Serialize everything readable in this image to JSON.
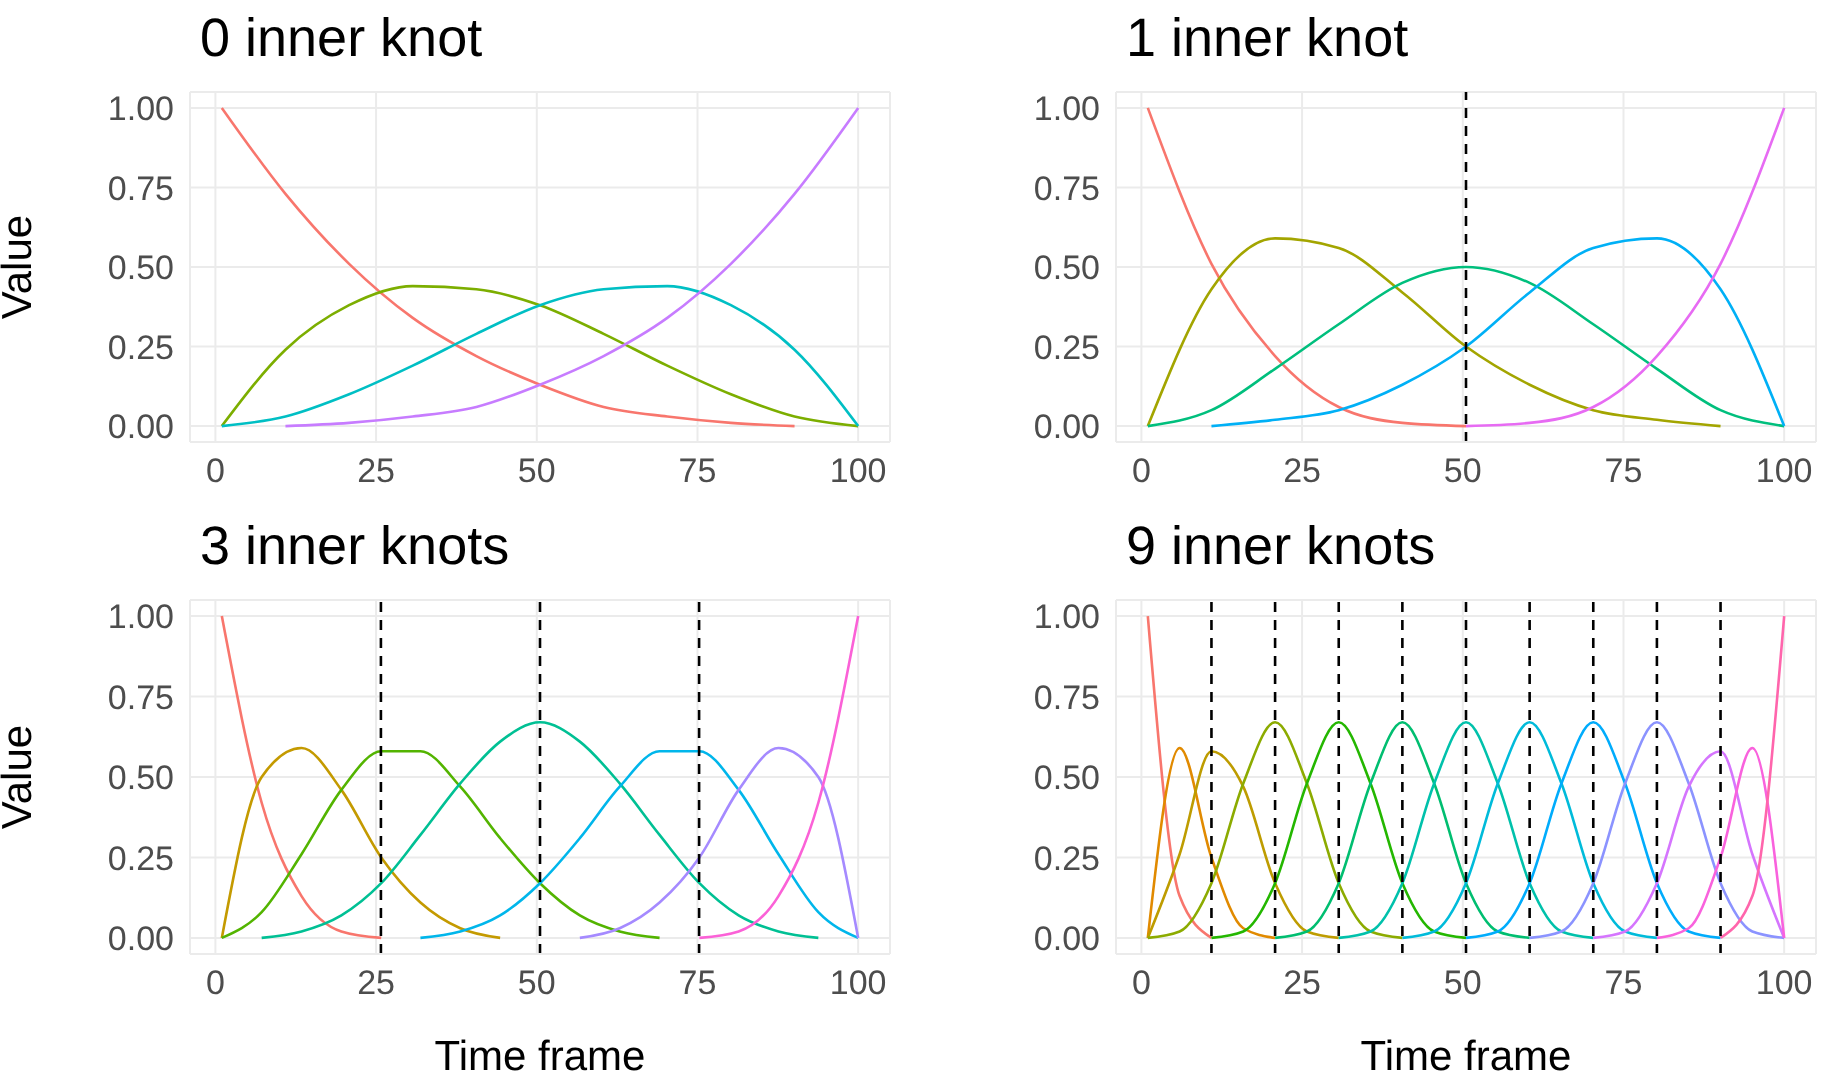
{
  "chart_data": [
    {
      "type": "line",
      "title": "0 inner knot",
      "ylabel": "Value",
      "x": [
        1,
        10.9,
        20.8,
        30.7,
        40.6,
        50.5,
        60.4,
        70.3,
        80.2,
        90.1,
        100
      ],
      "xlim": [
        -3.95,
        104.95
      ],
      "xticks": [
        0,
        25,
        50,
        75,
        100
      ],
      "ylim": [
        -0.05,
        1.05
      ],
      "yticks": [
        {
          "value": 0,
          "label": "0.00"
        },
        {
          "value": 0.25,
          "label": "0.25"
        },
        {
          "value": 0.5,
          "label": "0.50"
        },
        {
          "value": 0.75,
          "label": "0.75"
        },
        {
          "value": 1,
          "label": "1.00"
        }
      ],
      "grid": true,
      "series": [
        {
          "color": "#f8766d",
          "values": [
            1,
            0.73,
            0.51,
            0.34,
            0.22,
            0.13,
            0.06,
            0.03,
            0.01,
            0,
            null
          ]
        },
        {
          "color": "#7cae00",
          "values": [
            0,
            0.24,
            0.38,
            0.44,
            0.43,
            0.38,
            0.29,
            0.19,
            0.1,
            0.03,
            0
          ]
        },
        {
          "color": "#00bfc4",
          "values": [
            0,
            0.03,
            0.1,
            0.19,
            0.29,
            0.38,
            0.43,
            0.44,
            0.38,
            0.24,
            0
          ]
        },
        {
          "color": "#c77cff",
          "values": [
            null,
            0,
            0.01,
            0.03,
            0.06,
            0.13,
            0.22,
            0.34,
            0.51,
            0.73,
            1
          ]
        }
      ]
    },
    {
      "type": "line",
      "title": "1 inner knot",
      "x": [
        1,
        10.9,
        20.8,
        30.7,
        40.6,
        50.5,
        60.4,
        70.3,
        80.2,
        90.1,
        100
      ],
      "xlim": [
        -3.95,
        104.95
      ],
      "xticks": [
        0,
        25,
        50,
        75,
        100
      ],
      "ylim": [
        -0.05,
        1.05
      ],
      "yticks": [
        {
          "value": 0,
          "label": "0.00"
        },
        {
          "value": 0.25,
          "label": "0.25"
        },
        {
          "value": 0.5,
          "label": "0.50"
        },
        {
          "value": 0.75,
          "label": "0.75"
        },
        {
          "value": 1,
          "label": "1.00"
        }
      ],
      "grid": true,
      "ref_lines": [
        {
          "axis": "x",
          "value": 50.5,
          "color": "#000000",
          "line_style": "dashed"
        }
      ],
      "series": [
        {
          "color": "#f8766d",
          "values": [
            1,
            0.51,
            0.22,
            0.06,
            0.01,
            0,
            null,
            null,
            null,
            null,
            null
          ]
        },
        {
          "color": "#a3a500",
          "values": [
            0,
            0.43,
            0.59,
            0.56,
            0.42,
            0.25,
            0.13,
            0.05,
            0.02,
            0,
            null
          ]
        },
        {
          "color": "#00bf7d",
          "values": [
            0,
            0.05,
            0.18,
            0.32,
            0.45,
            0.5,
            0.45,
            0.32,
            0.18,
            0.05,
            0
          ]
        },
        {
          "color": "#00b0f6",
          "values": [
            null,
            0,
            0.02,
            0.05,
            0.13,
            0.25,
            0.42,
            0.56,
            0.59,
            0.43,
            0
          ]
        },
        {
          "color": "#e76bf3",
          "values": [
            null,
            null,
            null,
            null,
            null,
            0,
            0.01,
            0.06,
            0.22,
            0.51,
            1
          ]
        }
      ]
    },
    {
      "type": "line",
      "title": "3 inner knots",
      "ylabel": "Value",
      "xlabel": "Time frame",
      "x": [
        1,
        7.2,
        13.4,
        19.6,
        25.8,
        31.9,
        38.1,
        44.3,
        50.5,
        56.7,
        62.9,
        69.1,
        75.3,
        81.4,
        87.6,
        93.8,
        100
      ],
      "xlim": [
        -3.95,
        104.95
      ],
      "xticks": [
        0,
        25,
        50,
        75,
        100
      ],
      "ylim": [
        -0.05,
        1.05
      ],
      "yticks": [
        {
          "value": 0,
          "label": "0.00"
        },
        {
          "value": 0.25,
          "label": "0.25"
        },
        {
          "value": 0.5,
          "label": "0.50"
        },
        {
          "value": 0.75,
          "label": "0.75"
        },
        {
          "value": 1,
          "label": "1.00"
        }
      ],
      "grid": true,
      "ref_lines": [
        {
          "axis": "x",
          "value": 25.75,
          "color": "#000000",
          "line_style": "dashed"
        },
        {
          "axis": "x",
          "value": 50.5,
          "color": "#000000",
          "line_style": "dashed"
        },
        {
          "axis": "x",
          "value": 75.25,
          "color": "#000000",
          "line_style": "dashed"
        }
      ],
      "series": [
        {
          "color": "#f8766d",
          "values": [
            1,
            0.42,
            0.13,
            0.02,
            0,
            null,
            null,
            null,
            null,
            null,
            null,
            null,
            null,
            null,
            null,
            null,
            null
          ]
        },
        {
          "color": "#c49a00",
          "values": [
            0,
            0.5,
            0.59,
            0.46,
            0.25,
            0.11,
            0.03,
            0,
            null,
            null,
            null,
            null,
            null,
            null,
            null,
            null,
            null
          ]
        },
        {
          "color": "#53b400",
          "values": [
            0,
            0.08,
            0.26,
            0.46,
            0.58,
            0.58,
            0.47,
            0.31,
            0.17,
            0.07,
            0.02,
            0,
            null,
            null,
            null,
            null,
            null
          ]
        },
        {
          "color": "#00c094",
          "values": [
            null,
            0,
            0.02,
            0.07,
            0.17,
            0.32,
            0.48,
            0.61,
            0.67,
            0.61,
            0.48,
            0.32,
            0.17,
            0.07,
            0.02,
            0,
            null
          ]
        },
        {
          "color": "#00b6eb",
          "values": [
            null,
            null,
            null,
            null,
            null,
            0,
            0.02,
            0.07,
            0.17,
            0.31,
            0.47,
            0.58,
            0.58,
            0.46,
            0.26,
            0.08,
            0
          ]
        },
        {
          "color": "#a58aff",
          "values": [
            null,
            null,
            null,
            null,
            null,
            null,
            null,
            null,
            null,
            0,
            0.03,
            0.11,
            0.25,
            0.46,
            0.59,
            0.5,
            0
          ]
        },
        {
          "color": "#fb61d7",
          "values": [
            null,
            null,
            null,
            null,
            null,
            null,
            null,
            null,
            null,
            null,
            null,
            null,
            0,
            0.02,
            0.13,
            0.42,
            1
          ]
        }
      ]
    },
    {
      "type": "line",
      "title": "9 inner knots",
      "xlabel": "Time frame",
      "x": [
        1,
        5.95,
        10.9,
        15.85,
        20.8,
        25.75,
        30.7,
        35.65,
        40.6,
        45.55,
        50.5,
        55.45,
        60.4,
        65.35,
        70.3,
        75.25,
        80.2,
        85.15,
        90.1,
        95.05,
        100
      ],
      "xlim": [
        -3.95,
        104.95
      ],
      "xticks": [
        0,
        25,
        50,
        75,
        100
      ],
      "ylim": [
        -0.05,
        1.05
      ],
      "yticks": [
        {
          "value": 0,
          "label": "0.00"
        },
        {
          "value": 0.25,
          "label": "0.25"
        },
        {
          "value": 0.5,
          "label": "0.50"
        },
        {
          "value": 0.75,
          "label": "0.75"
        },
        {
          "value": 1,
          "label": "1.00"
        }
      ],
      "grid": true,
      "ref_lines": [
        {
          "axis": "x",
          "value": 10.9,
          "color": "#000000",
          "line_style": "dashed"
        },
        {
          "axis": "x",
          "value": 20.8,
          "color": "#000000",
          "line_style": "dashed"
        },
        {
          "axis": "x",
          "value": 30.7,
          "color": "#000000",
          "line_style": "dashed"
        },
        {
          "axis": "x",
          "value": 40.6,
          "color": "#000000",
          "line_style": "dashed"
        },
        {
          "axis": "x",
          "value": 50.5,
          "color": "#000000",
          "line_style": "dashed"
        },
        {
          "axis": "x",
          "value": 60.4,
          "color": "#000000",
          "line_style": "dashed"
        },
        {
          "axis": "x",
          "value": 70.3,
          "color": "#000000",
          "line_style": "dashed"
        },
        {
          "axis": "x",
          "value": 80.2,
          "color": "#000000",
          "line_style": "dashed"
        },
        {
          "axis": "x",
          "value": 90.1,
          "color": "#000000",
          "line_style": "dashed"
        }
      ],
      "series": [
        {
          "color": "#f8766d",
          "values": [
            1,
            0.13,
            0,
            null,
            null,
            null,
            null,
            null,
            null,
            null,
            null,
            null,
            null,
            null,
            null,
            null,
            null,
            null,
            null,
            null,
            null
          ]
        },
        {
          "color": "#e18a00",
          "values": [
            0,
            0.59,
            0.25,
            0.03,
            0,
            null,
            null,
            null,
            null,
            null,
            null,
            null,
            null,
            null,
            null,
            null,
            null,
            null,
            null,
            null,
            null
          ]
        },
        {
          "color": "#be9c00",
          "values": [
            0,
            0.26,
            0.58,
            0.47,
            0.17,
            0.02,
            0,
            null,
            null,
            null,
            null,
            null,
            null,
            null,
            null,
            null,
            null,
            null,
            null,
            null,
            null
          ]
        },
        {
          "color": "#8cab00",
          "values": [
            0,
            0.02,
            0.17,
            0.48,
            0.67,
            0.48,
            0.17,
            0.02,
            0,
            null,
            null,
            null,
            null,
            null,
            null,
            null,
            null,
            null,
            null,
            null,
            null
          ]
        },
        {
          "color": "#24b700",
          "values": [
            null,
            null,
            0,
            0.02,
            0.17,
            0.48,
            0.67,
            0.48,
            0.17,
            0.02,
            0,
            null,
            null,
            null,
            null,
            null,
            null,
            null,
            null,
            null,
            null
          ]
        },
        {
          "color": "#00be70",
          "values": [
            null,
            null,
            null,
            null,
            0,
            0.02,
            0.17,
            0.48,
            0.67,
            0.48,
            0.17,
            0.02,
            0,
            null,
            null,
            null,
            null,
            null,
            null,
            null,
            null
          ]
        },
        {
          "color": "#00c1ab",
          "values": [
            null,
            null,
            null,
            null,
            null,
            null,
            0,
            0.02,
            0.17,
            0.48,
            0.67,
            0.48,
            0.17,
            0.02,
            0,
            null,
            null,
            null,
            null,
            null,
            null
          ]
        },
        {
          "color": "#00bbda",
          "values": [
            null,
            null,
            null,
            null,
            null,
            null,
            null,
            null,
            0,
            0.02,
            0.17,
            0.48,
            0.67,
            0.48,
            0.17,
            0.02,
            0,
            null,
            null,
            null,
            null
          ]
        },
        {
          "color": "#00acfc",
          "values": [
            null,
            null,
            null,
            null,
            null,
            null,
            null,
            null,
            null,
            null,
            0,
            0.02,
            0.17,
            0.48,
            0.67,
            0.48,
            0.17,
            0.02,
            0,
            null,
            null
          ]
        },
        {
          "color": "#8b93ff",
          "values": [
            null,
            null,
            null,
            null,
            null,
            null,
            null,
            null,
            null,
            null,
            null,
            null,
            0,
            0.02,
            0.17,
            0.48,
            0.67,
            0.48,
            0.17,
            0.02,
            0
          ]
        },
        {
          "color": "#d575fe",
          "values": [
            null,
            null,
            null,
            null,
            null,
            null,
            null,
            null,
            null,
            null,
            null,
            null,
            null,
            null,
            0,
            0.02,
            0.17,
            0.47,
            0.58,
            0.26,
            0
          ]
        },
        {
          "color": "#f962dd",
          "values": [
            null,
            null,
            null,
            null,
            null,
            null,
            null,
            null,
            null,
            null,
            null,
            null,
            null,
            null,
            null,
            null,
            0,
            0.03,
            0.25,
            0.59,
            0
          ]
        },
        {
          "color": "#ff65ac",
          "values": [
            null,
            null,
            null,
            null,
            null,
            null,
            null,
            null,
            null,
            null,
            null,
            null,
            null,
            null,
            null,
            null,
            null,
            null,
            0,
            0.13,
            1
          ]
        }
      ]
    }
  ]
}
